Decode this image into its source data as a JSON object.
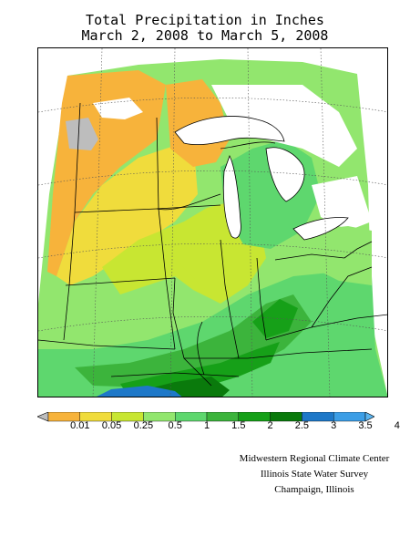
{
  "title": {
    "line1": "Total Precipitation in Inches",
    "line2": "March 2, 2008 to March 5, 2008"
  },
  "legend": {
    "labels": [
      "0.01",
      "0.05",
      "0.25",
      "0.5",
      "1",
      "1.5",
      "2",
      "2.5",
      "3",
      "3.5",
      "4"
    ],
    "colors": [
      "#bdbdbd",
      "#f7b33b",
      "#f0dc3c",
      "#c8e632",
      "#92e66e",
      "#5ed76e",
      "#3cb43c",
      "#16a018",
      "#0a7a0c",
      "#1e78c8",
      "#3c9ee6",
      "#5ab4f0"
    ]
  },
  "credits": {
    "line1": "Midwestern Regional Climate Center",
    "line2": "Illinois State Water Survey",
    "line3": "Champaign, Illinois"
  }
}
